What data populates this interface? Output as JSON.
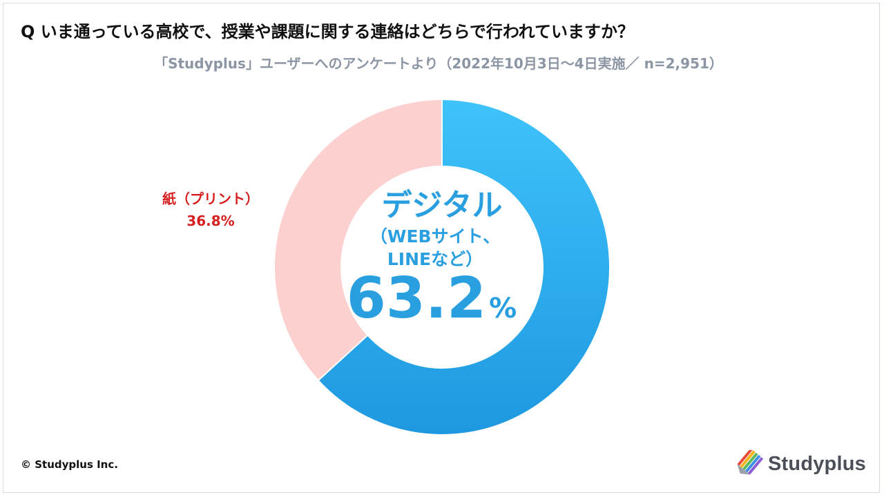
{
  "question": "Q いま通っている高校で、授業や課題に関する連絡はどちらで行われていますか？",
  "subtitle": "「Studyplus」ユーザーへのアンケートより（2022年10月3日〜4日実施／ n=2,951）",
  "colors": {
    "digital_top": "#3fc3fb",
    "digital_bottom": "#1e98e0",
    "paper": "#fdd0d0",
    "digital_text": "#2a9fe0",
    "paper_text": "#d61f1f"
  },
  "chart_data": {
    "type": "pie",
    "donut": true,
    "slices": [
      {
        "label": "デジタル",
        "label_sub_1": "（WEBサイト、",
        "label_sub_2": "LINEなど）",
        "value": 63.2,
        "value_text": "63.2",
        "unit": "%"
      },
      {
        "label": "紙（プリント）",
        "value": 36.8,
        "value_text": "36.8%"
      }
    ]
  },
  "footer": {
    "copyright": "© Studyplus Inc.",
    "logo_text": "Studyplus",
    "logo_icon": "pencil-stripes-icon"
  }
}
